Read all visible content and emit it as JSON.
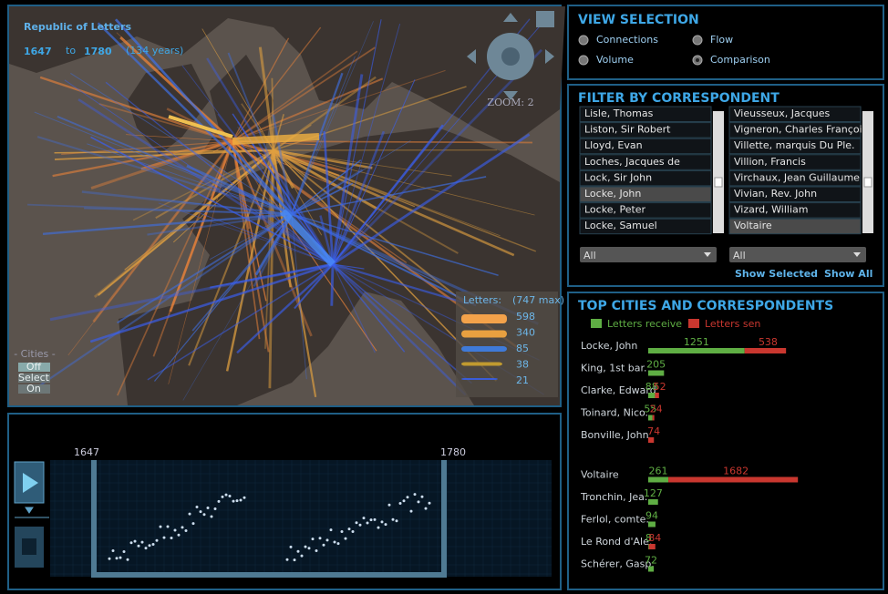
{
  "map": {
    "title": "Republic of Letters",
    "start_year": 1647,
    "to": "to",
    "end_year": 1780,
    "span": "(134 years)",
    "zoom": "ZOOM: 2",
    "legend": {
      "title": "Letters:",
      "max": "(747 max)",
      "values": [
        598,
        340,
        85,
        38,
        21
      ]
    },
    "cities": {
      "title": "- Cities -",
      "options": [
        "Off",
        "Select",
        "On"
      ]
    }
  },
  "timeline": {
    "start": 1647,
    "end": 1780
  },
  "view_selection": {
    "title": "VIEW SELECTION",
    "options": [
      "Connections",
      "Flow",
      "Volume",
      "Comparison"
    ],
    "selected": 3
  },
  "filter": {
    "title": "FILTER BY CORRESPONDENT",
    "left_list": [
      "Lisle, Thomas",
      "Liston, Sir Robert",
      "Lloyd, Evan",
      "Loches, Jacques de",
      "Lock, Sir John",
      "Locke, John",
      "Locke, Peter",
      "Locke, Samuel"
    ],
    "left_selected": 5,
    "right_list": [
      "Vieusseux, Jacques",
      "Vigneron, Charles François",
      "Villette, marquis Du Ple.",
      "Villion, Francis",
      "Virchaux, Jean Guillaume",
      "Vivian, Rev. John",
      "Vizard, William",
      "Voltaire"
    ],
    "right_selected": 7,
    "dropdowns": [
      "All",
      "All"
    ],
    "buttons": [
      "Show Selected",
      "Show All"
    ]
  },
  "top": {
    "title": "TOP CITIES AND CORRESPONDENTS",
    "legend": [
      "Letters receive",
      "Letters sen"
    ],
    "rows": [
      {
        "name": "Locke, John",
        "received": 1251,
        "sent": 538
      },
      {
        "name": "King, 1st bar.",
        "received": 205,
        "sent": null
      },
      {
        "name": "Clarke, Edward",
        "received": 88,
        "sent": 52
      },
      {
        "name": "Toinard, Nico.",
        "received": 55,
        "sent": 24
      },
      {
        "name": "Bonville, John",
        "received": null,
        "sent": 74
      },
      {
        "name": "Voltaire",
        "received": 261,
        "sent": 1682
      },
      {
        "name": "Tronchin, Jea.",
        "received": 127,
        "sent": null
      },
      {
        "name": "Ferlol, comte.",
        "received": 94,
        "sent": null
      },
      {
        "name": "Le Rond d'Ale.",
        "received": 8,
        "sent": 84
      },
      {
        "name": "Schérer, Gasp.",
        "received": 72,
        "sent": null
      }
    ]
  }
}
